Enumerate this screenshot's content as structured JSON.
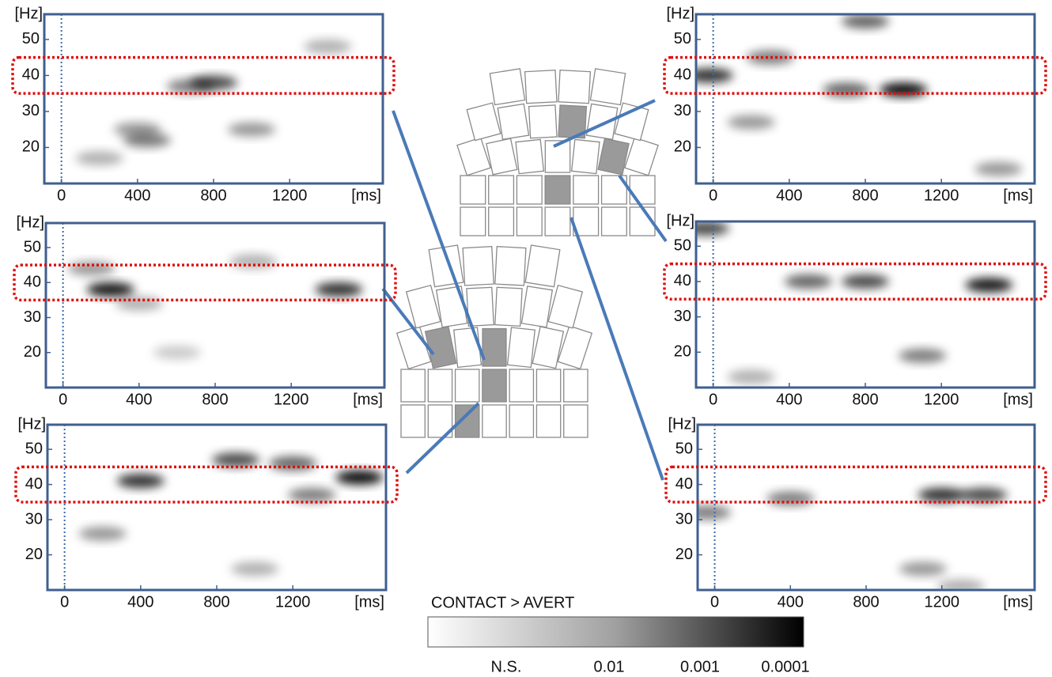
{
  "chart_data": [
    {
      "type": "heatmap",
      "x_unit": "[ms]",
      "y_unit": "[Hz]",
      "xlim": [
        -90,
        1690
      ],
      "ylim": [
        10,
        57
      ],
      "xticks": [
        0,
        400,
        800,
        1200
      ],
      "yticks": [
        20,
        30,
        40,
        50
      ],
      "band": [
        35,
        45
      ],
      "onset": 0,
      "blobs": [
        {
          "x": 800,
          "y": 38,
          "level": 0.7
        },
        {
          "x": 680,
          "y": 37,
          "level": 0.5
        },
        {
          "x": 400,
          "y": 25,
          "level": 0.4
        },
        {
          "x": 1000,
          "y": 25,
          "level": 0.4
        },
        {
          "x": 200,
          "y": 17,
          "level": 0.3
        },
        {
          "x": 1400,
          "y": 48,
          "level": 0.3
        },
        {
          "x": 450,
          "y": 22,
          "level": 0.5
        }
      ]
    },
    {
      "type": "heatmap",
      "x_unit": "[ms]",
      "y_unit": "[Hz]",
      "xlim": [
        -90,
        1690
      ],
      "ylim": [
        10,
        57
      ],
      "xticks": [
        0,
        400,
        800,
        1200
      ],
      "yticks": [
        20,
        30,
        40,
        50
      ],
      "band": [
        35,
        45
      ],
      "onset": 0,
      "blobs": [
        {
          "x": 250,
          "y": 38,
          "level": 0.9
        },
        {
          "x": 1450,
          "y": 38,
          "level": 0.8
        },
        {
          "x": 150,
          "y": 44,
          "level": 0.4
        },
        {
          "x": 1000,
          "y": 46,
          "level": 0.3
        },
        {
          "x": 400,
          "y": 34,
          "level": 0.3
        },
        {
          "x": 600,
          "y": 20,
          "level": 0.2
        }
      ]
    },
    {
      "type": "heatmap",
      "x_unit": "[ms]",
      "y_unit": "[Hz]",
      "xlim": [
        -90,
        1690
      ],
      "ylim": [
        10,
        57
      ],
      "xticks": [
        0,
        400,
        800,
        1200
      ],
      "yticks": [
        20,
        30,
        40,
        50
      ],
      "band": [
        35,
        45
      ],
      "onset": 0,
      "blobs": [
        {
          "x": 400,
          "y": 41,
          "level": 0.8
        },
        {
          "x": 1200,
          "y": 46,
          "level": 0.6
        },
        {
          "x": 1550,
          "y": 42,
          "level": 0.95
        },
        {
          "x": 900,
          "y": 47,
          "level": 0.7
        },
        {
          "x": 1300,
          "y": 37,
          "level": 0.5
        },
        {
          "x": 200,
          "y": 26,
          "level": 0.4
        },
        {
          "x": 1000,
          "y": 16,
          "level": 0.3
        }
      ]
    },
    {
      "type": "heatmap",
      "x_unit": "[ms]",
      "y_unit": "[Hz]",
      "xlim": [
        -90,
        1690
      ],
      "ylim": [
        10,
        57
      ],
      "xticks": [
        0,
        400,
        800,
        1200
      ],
      "yticks": [
        20,
        30,
        40,
        50
      ],
      "band": [
        35,
        45
      ],
      "onset": 0,
      "blobs": [
        {
          "x": -20,
          "y": 40,
          "level": 0.8
        },
        {
          "x": 1000,
          "y": 36,
          "level": 0.95
        },
        {
          "x": 700,
          "y": 36,
          "level": 0.6
        },
        {
          "x": 300,
          "y": 45,
          "level": 0.5
        },
        {
          "x": 800,
          "y": 55,
          "level": 0.6
        },
        {
          "x": 200,
          "y": 27,
          "level": 0.4
        },
        {
          "x": 1500,
          "y": 14,
          "level": 0.4
        }
      ]
    },
    {
      "type": "heatmap",
      "x_unit": "[ms]",
      "y_unit": "[Hz]",
      "xlim": [
        -90,
        1690
      ],
      "ylim": [
        10,
        57
      ],
      "xticks": [
        0,
        400,
        800,
        1200
      ],
      "yticks": [
        20,
        30,
        40,
        50
      ],
      "band": [
        35,
        45
      ],
      "onset": 0,
      "blobs": [
        {
          "x": 1450,
          "y": 39,
          "level": 0.9
        },
        {
          "x": 800,
          "y": 40,
          "level": 0.7
        },
        {
          "x": 500,
          "y": 40,
          "level": 0.6
        },
        {
          "x": 1100,
          "y": 19,
          "level": 0.5
        },
        {
          "x": -40,
          "y": 55,
          "level": 0.7
        },
        {
          "x": 200,
          "y": 13,
          "level": 0.3
        }
      ]
    },
    {
      "type": "heatmap",
      "x_unit": "[ms]",
      "y_unit": "[Hz]",
      "xlim": [
        -90,
        1690
      ],
      "ylim": [
        10,
        57
      ],
      "xticks": [
        0,
        400,
        800,
        1200
      ],
      "yticks": [
        20,
        30,
        40,
        50
      ],
      "band": [
        35,
        45
      ],
      "onset": 0,
      "blobs": [
        {
          "x": 1200,
          "y": 37,
          "level": 0.8
        },
        {
          "x": 1420,
          "y": 37,
          "level": 0.7
        },
        {
          "x": 400,
          "y": 36,
          "level": 0.5
        },
        {
          "x": -40,
          "y": 32,
          "level": 0.5
        },
        {
          "x": 1100,
          "y": 16,
          "level": 0.4
        },
        {
          "x": 1300,
          "y": 11,
          "level": 0.3
        }
      ]
    }
  ],
  "colorbar": {
    "title": "CONTACT > AVERT",
    "labels": [
      "N.S.",
      "0.01",
      "0.001",
      "0.0001"
    ]
  }
}
